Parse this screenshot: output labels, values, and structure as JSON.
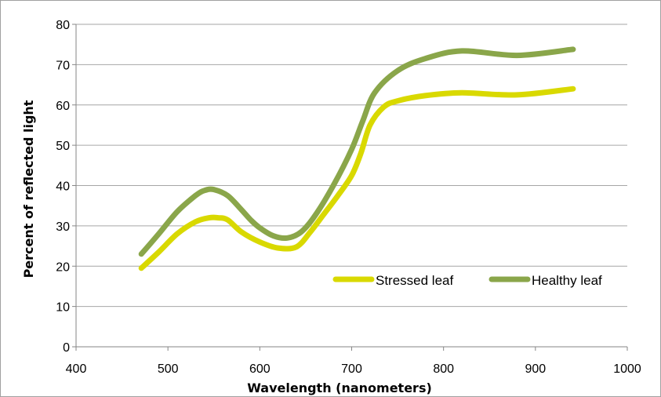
{
  "chart_data": {
    "type": "line",
    "title": "",
    "xlabel": "Wavelength (nanometers)",
    "ylabel": "Percent of reflected light",
    "xlim": [
      400,
      1000
    ],
    "ylim": [
      0,
      80
    ],
    "xticks": [
      400,
      500,
      600,
      700,
      800,
      900,
      1000
    ],
    "yticks": [
      0,
      10,
      20,
      30,
      40,
      50,
      60,
      70,
      80
    ],
    "grid": "horizontal",
    "legend": "inside-lower-right",
    "series": [
      {
        "name": "Stressed leaf",
        "color": "#d9d900",
        "x": [
          471,
          490,
          510,
          530,
          545,
          555,
          565,
          580,
          600,
          620,
          640,
          655,
          670,
          685,
          700,
          710,
          720,
          735,
          750,
          780,
          820,
          880,
          941
        ],
        "y": [
          19.5,
          23.5,
          28,
          31,
          32,
          32,
          31.5,
          28.5,
          26,
          24.5,
          24.8,
          28.5,
          33,
          37.5,
          42.5,
          48,
          55,
          59.5,
          61,
          62.3,
          63,
          62.5,
          64
        ]
      },
      {
        "name": "Healthy leaf",
        "color": "#8aa64a",
        "x": [
          471,
          490,
          510,
          530,
          540,
          550,
          565,
          580,
          590,
          600,
          615,
          630,
          645,
          660,
          680,
          700,
          712,
          725,
          750,
          780,
          820,
          880,
          941
        ],
        "y": [
          23,
          28,
          33.5,
          37.5,
          38.8,
          39,
          37.5,
          34,
          31.5,
          29.5,
          27.5,
          27,
          28.5,
          32.5,
          40,
          49,
          56,
          63,
          68.5,
          71.5,
          73.4,
          72.3,
          73.8
        ]
      }
    ]
  }
}
